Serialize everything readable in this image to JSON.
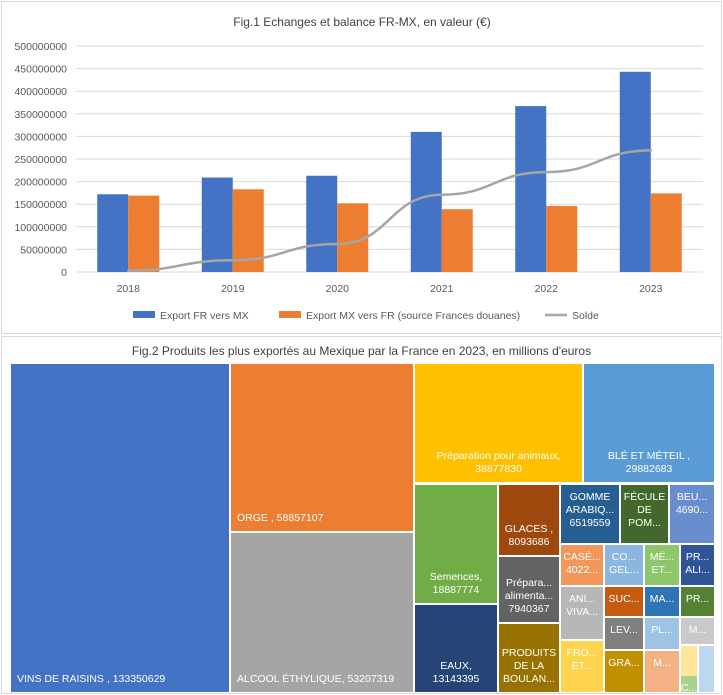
{
  "chart_data": [
    {
      "type": "bar",
      "title": "Fig.1 Echanges et balance FR-MX, en valeur (€)",
      "categories": [
        "2018",
        "2019",
        "2020",
        "2021",
        "2022",
        "2023"
      ],
      "ylim": [
        0,
        500000000
      ],
      "yticks": [
        "500000000",
        "450000000",
        "400000000",
        "350000000",
        "300000000",
        "250000000",
        "200000000",
        "150000000",
        "100000000",
        "50000000",
        "0"
      ],
      "grid": true,
      "legend_position": "bottom",
      "series": [
        {
          "name": "Export FR vers MX",
          "kind": "bar",
          "color": "#4472C4",
          "values": [
            172000000,
            209000000,
            213000000,
            310000000,
            367000000,
            443000000
          ]
        },
        {
          "name": "Export MX vers FR (source Frances douanes)",
          "kind": "bar",
          "color": "#ED7D31",
          "values": [
            169000000,
            183000000,
            152000000,
            139000000,
            146000000,
            174000000
          ]
        },
        {
          "name": "Solde",
          "kind": "line",
          "color": "#A5A5A5",
          "values": [
            3000000,
            26000000,
            62000000,
            171000000,
            221000000,
            269000000
          ]
        }
      ]
    },
    {
      "type": "treemap",
      "title": "Fig.2 Produits les plus exportés au Mexique par la France en 2023, en millions d'euros",
      "items": [
        {
          "label": "VINS DE RAISINS , 133350629",
          "value": 133350629,
          "color": "#4472C4"
        },
        {
          "label": "ORGE , 58857107",
          "value": 58857107,
          "color": "#ED7D31"
        },
        {
          "label": "ALCOOL ÉTHYLIQUE, 53207319",
          "value": 53207319,
          "color": "#A5A5A5"
        },
        {
          "label": "Préparation pour animaux, 38877830",
          "value": 38877830,
          "color": "#FFC000"
        },
        {
          "label": "BLÉ ET MÉTEIL , 29882683",
          "value": 29882683,
          "color": "#5B9BD5"
        },
        {
          "label": "Semences, 18887774",
          "value": 18887774,
          "color": "#70AD47"
        },
        {
          "label": "EAUX, 13143395",
          "value": 13143395,
          "color": "#264478"
        },
        {
          "label": "GLACES , 8093686",
          "value": 8093686,
          "color": "#9E480E"
        },
        {
          "label": "Prépara... alimenta... 7940367",
          "value": 7940367,
          "color": "#636363"
        },
        {
          "label": "PRODUITS DE LA BOULAN...",
          "value": 7500000,
          "color": "#997300"
        },
        {
          "label": "GOMME ARABIQ... 6519559",
          "value": 6519559,
          "color": "#255E91"
        },
        {
          "label": "FÉCULE DE POM...",
          "value": 5200000,
          "color": "#43682B"
        },
        {
          "label": "BEU... 4690...",
          "value": 4690000,
          "color": "#698ED0"
        },
        {
          "label": "CASÉ... 4022...",
          "value": 4022000,
          "color": "#F1975A"
        },
        {
          "label": "CO... GEL...",
          "value": 3400000,
          "color": "#8CB5E0"
        },
        {
          "label": "MÉ... ET...",
          "value": 3100000,
          "color": "#8EC66C"
        },
        {
          "label": "PR... ALI...",
          "value": 2900000,
          "color": "#2F5597"
        },
        {
          "label": "ANI... VIVA...",
          "value": 3600000,
          "color": "#B7B7B7"
        },
        {
          "label": "SUC...",
          "value": 2700000,
          "color": "#C55A11"
        },
        {
          "label": "MA...",
          "value": 2200000,
          "color": "#2E75B6"
        },
        {
          "label": "PR...",
          "value": 2100000,
          "color": "#548235"
        },
        {
          "label": "LEV...",
          "value": 2300000,
          "color": "#7F7F7F"
        },
        {
          "label": "PL...",
          "value": 1900000,
          "color": "#9DC3E6"
        },
        {
          "label": "M...",
          "value": 1500000,
          "color": "#C9C9C9"
        },
        {
          "label": "FRO... ET...",
          "value": 3200000,
          "color": "#FFD34D"
        },
        {
          "label": "GRA...",
          "value": 2000000,
          "color": "#BF9000"
        },
        {
          "label": "M...",
          "value": 1400000,
          "color": "#F4B183"
        },
        {
          "label": "",
          "value": 1000000,
          "color": "#FFE699"
        },
        {
          "label": "C...",
          "value": 1000000,
          "color": "#A9D18E"
        },
        {
          "label": "",
          "value": 900000,
          "color": "#BDD7EE"
        }
      ]
    }
  ]
}
